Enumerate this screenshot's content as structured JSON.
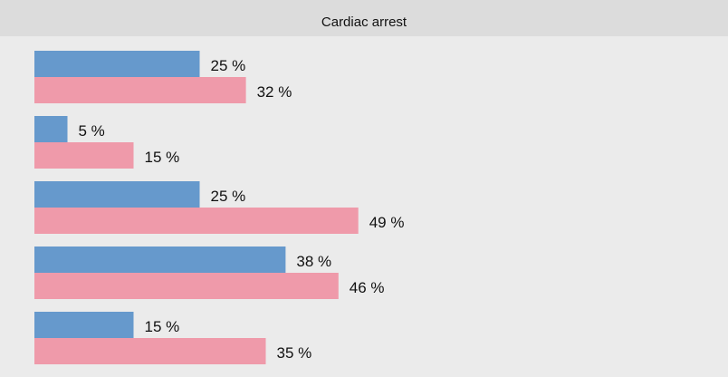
{
  "chart_data": {
    "type": "hbar",
    "title": "Cardiac arrest",
    "categories": [
      null,
      null,
      null,
      null,
      null
    ],
    "series": [
      {
        "color": "#6699cc",
        "values": [
          25,
          5,
          25,
          38,
          15
        ],
        "value_labels": [
          "25 %",
          "5 %",
          "25 %",
          "38 %",
          "15 %"
        ]
      },
      {
        "color": "#ef9aaa",
        "values": [
          32,
          15,
          49,
          46,
          35
        ],
        "value_labels": [
          "32 %",
          "15 %",
          "49 %",
          "46 %",
          "35 %"
        ]
      }
    ],
    "xlim": [
      0,
      100
    ]
  }
}
